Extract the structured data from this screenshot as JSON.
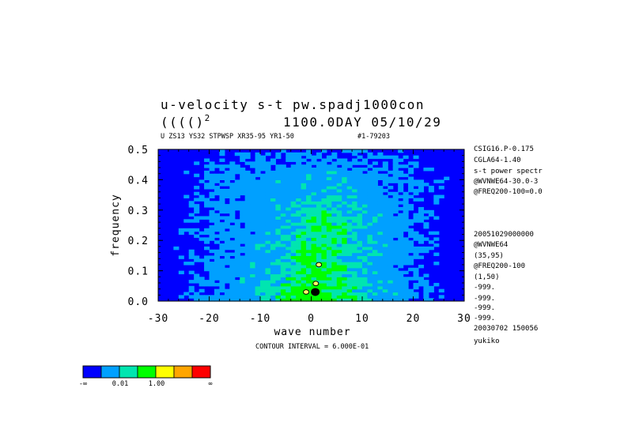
{
  "figure": {
    "title_line1": "u-velocity s-t pw.spadj1000con",
    "title_line2_left": "((((",
    "title_line2_paren": ")",
    "title_line2_sup": "2",
    "title_line2_right": "1100.0DAY 05/10/29",
    "subtitle_left": "U ZS13 YS32 STPWSP XR35-95 YR1-50",
    "subtitle_right": "#1-79203",
    "contour_interval": "CONTOUR INTERVAL = 6.000E-01",
    "side_labels": [
      "CSIG16.P-0.175",
      "CGLA64-1.40",
      "s-t power spectr",
      "@WVNWE64-30.0-3",
      "@FREQ200-100=0.0",
      "20051029000000",
      "@WVNWE64",
      "(35,95)",
      "@FREQ200-100",
      "(1,50)",
      "-999.",
      "-999.",
      "-999.",
      "-999.",
      "20030702 150056",
      "yukiko"
    ]
  },
  "chart_data": {
    "type": "heatmap",
    "xlabel": "wave number",
    "ylabel": "frequency",
    "xlim": [
      -30,
      30
    ],
    "ylim": [
      0.0,
      0.5
    ],
    "x_ticks": [
      -30,
      -20,
      -10,
      0,
      10,
      20,
      30
    ],
    "x_tick_labels": [
      "-30",
      "-20",
      "-10",
      "0",
      "10",
      "20",
      "30"
    ],
    "y_ticks": [
      0.0,
      0.1,
      0.2,
      0.3,
      0.4,
      0.5
    ],
    "y_tick_labels": [
      "0.0",
      "0.1",
      "0.2",
      "0.3",
      "0.4",
      "0.5"
    ],
    "field_description": "log10 power; background levels fill between shaded contour bands; maximum near wavenumber 0, low frequency",
    "regions": [
      {
        "level": 2,
        "x": [
          -22,
          25
        ],
        "y": [
          0.02,
          0.46
        ],
        "note": "cyan broad band"
      },
      {
        "level": 3,
        "x": [
          -8,
          12
        ],
        "y": [
          0.0,
          0.33
        ],
        "note": "teal core"
      },
      {
        "level": 4,
        "x": [
          -7,
          5
        ],
        "y": [
          0.0,
          0.1
        ],
        "note": "green maximum"
      }
    ],
    "markers": [
      {
        "x": 0.8,
        "y": 0.03,
        "label": "peak"
      },
      {
        "x": 0.9,
        "y": 0.058,
        "label": ""
      },
      {
        "x": 1.5,
        "y": 0.12,
        "label": ""
      },
      {
        "x": -1.0,
        "y": 0.03,
        "label": ""
      }
    ],
    "colorbar": {
      "colors": [
        "#0000ff",
        "#00a0ff",
        "#00e5b0",
        "#00ff00",
        "#ffff00",
        "#ffa500",
        "#ff0000"
      ],
      "tick_labels": [
        "-∞",
        "0.01",
        "1.00",
        "∞"
      ]
    }
  }
}
